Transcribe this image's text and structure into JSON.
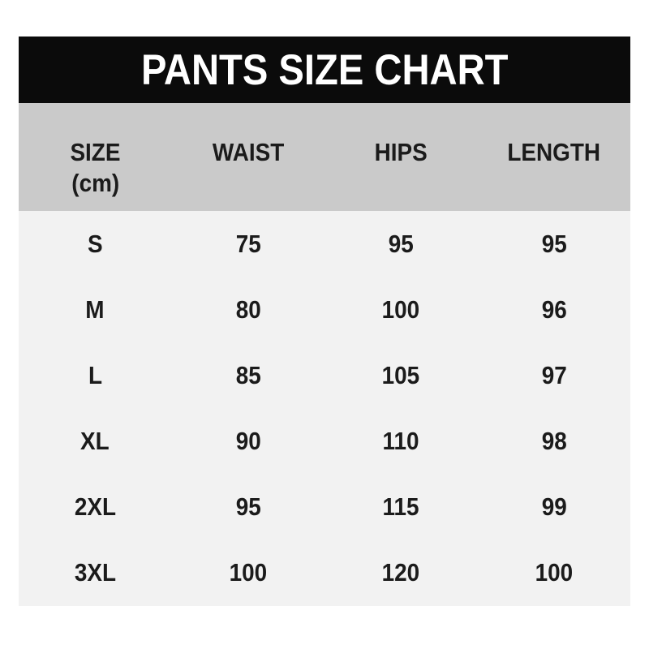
{
  "chart_data": {
    "type": "table",
    "title": "PANTS SIZE CHART",
    "unit": "cm",
    "columns": [
      "SIZE (cm)",
      "WAIST",
      "HIPS",
      "LENGTH"
    ],
    "rows": [
      {
        "size": "S",
        "waist": 75,
        "hips": 95,
        "length": 95
      },
      {
        "size": "M",
        "waist": 80,
        "hips": 100,
        "length": 96
      },
      {
        "size": "L",
        "waist": 85,
        "hips": 105,
        "length": 97
      },
      {
        "size": "XL",
        "waist": 90,
        "hips": 110,
        "length": 98
      },
      {
        "size": "2XL",
        "waist": 95,
        "hips": 115,
        "length": 99
      },
      {
        "size": "3XL",
        "waist": 100,
        "hips": 120,
        "length": 100
      }
    ]
  },
  "column_headers": {
    "size_line1": "SIZE",
    "size_line2": "(cm)",
    "waist": "WAIST",
    "hips": "HIPS",
    "length": "LENGTH"
  },
  "colors": {
    "title_bar_bg": "#0b0b0b",
    "title_text": "#ffffff",
    "header_row_bg": "#cacaca",
    "body_bg": "#f2f2f2",
    "text": "#1b1b1b",
    "page_bg": "#ffffff"
  }
}
